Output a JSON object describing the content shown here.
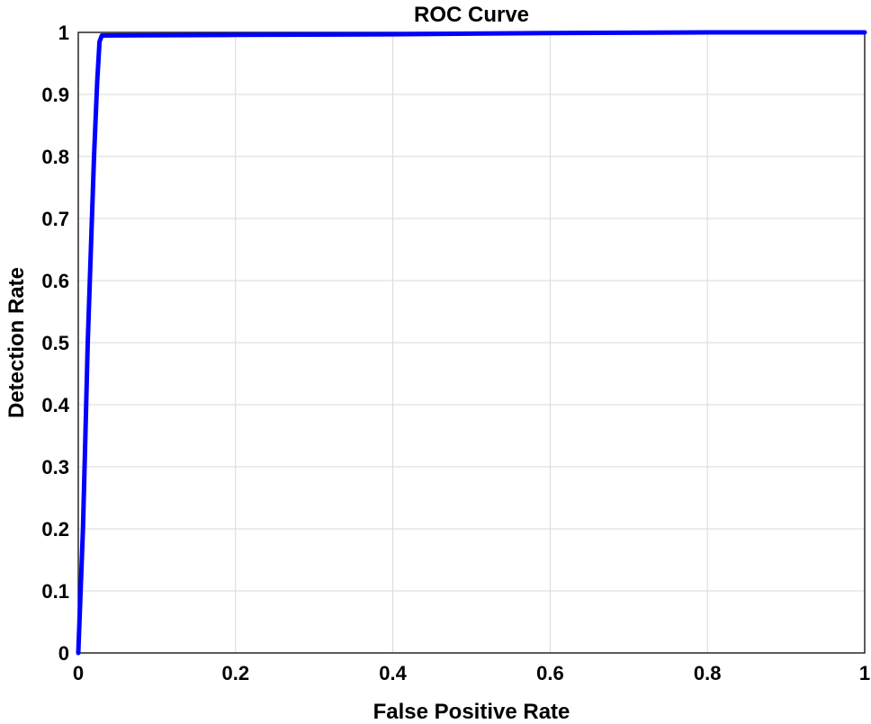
{
  "chart_data": {
    "type": "line",
    "title": "ROC Curve",
    "xlabel": "False Positive Rate",
    "ylabel": "Detection Rate",
    "xlim": [
      0,
      1
    ],
    "ylim": [
      0,
      1
    ],
    "xticks": [
      0,
      0.2,
      0.4,
      0.6,
      0.8,
      1
    ],
    "yticks": [
      0,
      0.1,
      0.2,
      0.3,
      0.4,
      0.5,
      0.6,
      0.7,
      0.8,
      0.9,
      1
    ],
    "xtick_labels": [
      "0",
      "0.2",
      "0.4",
      "0.6",
      "0.8",
      "1"
    ],
    "ytick_labels": [
      "0",
      "0.1",
      "0.2",
      "0.3",
      "0.4",
      "0.5",
      "0.6",
      "0.7",
      "0.8",
      "0.9",
      "1"
    ],
    "grid": true,
    "series": [
      {
        "color": "#0000ff",
        "x": [
          0,
          0.003,
          0.006,
          0.009,
          0.012,
          0.016,
          0.02,
          0.024,
          0.027,
          0.03,
          0.2,
          0.4,
          0.5,
          0.6,
          0.8,
          1
        ],
        "y": [
          0,
          0.1,
          0.2,
          0.35,
          0.5,
          0.65,
          0.8,
          0.92,
          0.985,
          0.995,
          0.996,
          0.997,
          0.998,
          0.999,
          1,
          1
        ]
      }
    ]
  }
}
